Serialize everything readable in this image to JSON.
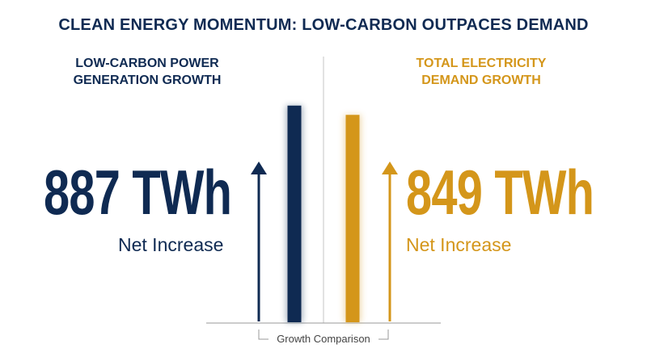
{
  "title": "CLEAN ENERGY MOMENTUM: LOW-CARBON OUTPACES DEMAND",
  "colors": {
    "navy": "#0f2a52",
    "gold": "#d4961a",
    "divider": "#cfcfcf",
    "axis": "#9a9a9a"
  },
  "left_panel": {
    "heading_line1": "LOW-CARBON POWER",
    "heading_line2": "GENERATION GROWTH",
    "value": "887 TWh",
    "caption": "Net Increase"
  },
  "right_panel": {
    "heading_line1": "TOTAL ELECTRICITY",
    "heading_line2": "DEMAND GROWTH",
    "value": "849 TWh",
    "caption": "Net Increase"
  },
  "chart_data": {
    "type": "bar",
    "title": "CLEAN ENERGY MOMENTUM: LOW-CARBON OUTPACES DEMAND",
    "categories": [
      "LOW-CARBON POWER GENERATION GROWTH",
      "TOTAL ELECTRICITY DEMAND GROWTH"
    ],
    "values": [
      887,
      849
    ],
    "unit": "TWh",
    "xlabel": "Growth Comparison",
    "ylabel": "",
    "ylim": [
      0,
      1000
    ],
    "grid": false,
    "legend": "none"
  }
}
